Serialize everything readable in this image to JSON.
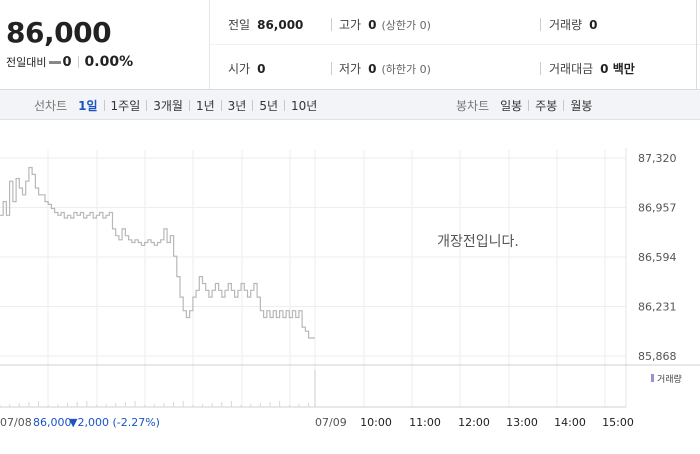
{
  "quote": {
    "price": "86,000",
    "change_label": "전일대비",
    "change_value": "0",
    "change_pct": "0.00%"
  },
  "stats": {
    "prev_close": {
      "label": "전일",
      "value": "86,000"
    },
    "high": {
      "label": "고가",
      "value": "0",
      "note": "(상한가 0)"
    },
    "volume": {
      "label": "거래량",
      "value": "0"
    },
    "open": {
      "label": "시가",
      "value": "0"
    },
    "low": {
      "label": "저가",
      "value": "0",
      "note": "(하한가 0)"
    },
    "amount": {
      "label": "거래대금",
      "value": "0 백만"
    }
  },
  "period_tabs": {
    "label": "선차트",
    "items": [
      "1일",
      "1주일",
      "3개월",
      "1년",
      "3년",
      "5년",
      "10년"
    ],
    "active": "1일"
  },
  "candle_tabs": {
    "label": "봉차트",
    "items": [
      "일봉",
      "주봉",
      "월봉"
    ]
  },
  "chart_data": {
    "type": "line",
    "x_first_session_label": "07/08",
    "x_second_session_label": "07/09",
    "x_ticks": [
      "07/08",
      "07/09",
      "10:00",
      "11:00",
      "12:00",
      "13:00",
      "14:00",
      "15:00"
    ],
    "y_ticks": [
      "87,320",
      "86,957",
      "86,594",
      "86,231",
      "85,868"
    ],
    "ylim": [
      85868,
      87320
    ],
    "prev_session_values": [
      86900,
      87000,
      86900,
      87150,
      87000,
      87170,
      87100,
      87050,
      87150,
      87250,
      87200,
      87100,
      87050,
      87050,
      87000,
      86980,
      86950,
      86920,
      86900,
      86920,
      86880,
      86900,
      86880,
      86920,
      86900,
      86920,
      86880,
      86900,
      86920,
      86880,
      86900,
      86920,
      86880,
      86900,
      86920,
      86800,
      86750,
      86720,
      86800,
      86750,
      86720,
      86700,
      86720,
      86700,
      86680,
      86700,
      86720,
      86700,
      86680,
      86700,
      86720,
      86800,
      86700,
      86750,
      86600,
      86450,
      86300,
      86200,
      86150,
      86200,
      86300,
      86350,
      86450,
      86400,
      86350,
      86300,
      86350,
      86400,
      86350,
      86300,
      86350,
      86400,
      86350,
      86300,
      86350,
      86400,
      86350,
      86300,
      86350,
      86400,
      86300,
      86200,
      86150,
      86200,
      86150,
      86200,
      86150,
      86200,
      86150,
      86200,
      86150,
      86200,
      86150,
      86200,
      86080,
      86050,
      86000,
      86000
    ],
    "volume_label": "거래량",
    "last_price_label": "86,000",
    "last_change_label": "▼2,000 (-2.27%)",
    "message": "개장전입니다."
  },
  "colors": {
    "accent": "#1a54c6",
    "line": "#b8b8b8",
    "down": "#1a54c6"
  }
}
